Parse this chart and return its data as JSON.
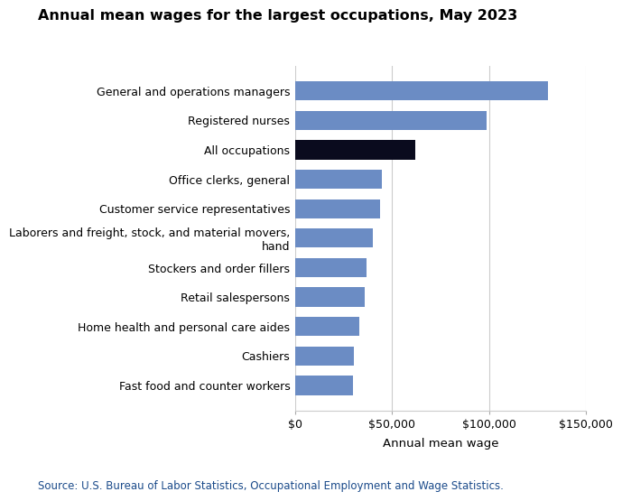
{
  "title": "Annual mean wages for the largest occupations, May 2023",
  "categories": [
    "Fast food and counter workers",
    "Cashiers",
    "Home health and personal care aides",
    "Retail salespersons",
    "Stockers and order fillers",
    "Laborers and freight, stock, and material movers,\nhand",
    "Customer service representatives",
    "Office clerks, general",
    "All occupations",
    "Registered nurses",
    "General and operations managers"
  ],
  "values": [
    30020,
    30330,
    33210,
    36010,
    37060,
    40130,
    44030,
    44590,
    61900,
    98820,
    130600
  ],
  "bar_colors": [
    "#6B8CC4",
    "#6B8CC4",
    "#6B8CC4",
    "#6B8CC4",
    "#6B8CC4",
    "#6B8CC4",
    "#6B8CC4",
    "#6B8CC4",
    "#0A0B1E",
    "#6B8CC4",
    "#6B8CC4"
  ],
  "xlabel": "Annual mean wage",
  "xlim": [
    0,
    150000
  ],
  "xticks": [
    0,
    50000,
    100000,
    150000
  ],
  "xtick_labels": [
    "$0",
    "$50,000",
    "$100,000",
    "$150,000"
  ],
  "source_text": "Source: U.S. Bureau of Labor Statistics, Occupational Employment and Wage Statistics.",
  "background_color": "#ffffff",
  "grid_color": "#cccccc",
  "title_fontsize": 11.5,
  "label_fontsize": 9,
  "tick_fontsize": 9,
  "xlabel_fontsize": 9.5,
  "source_fontsize": 8.5
}
